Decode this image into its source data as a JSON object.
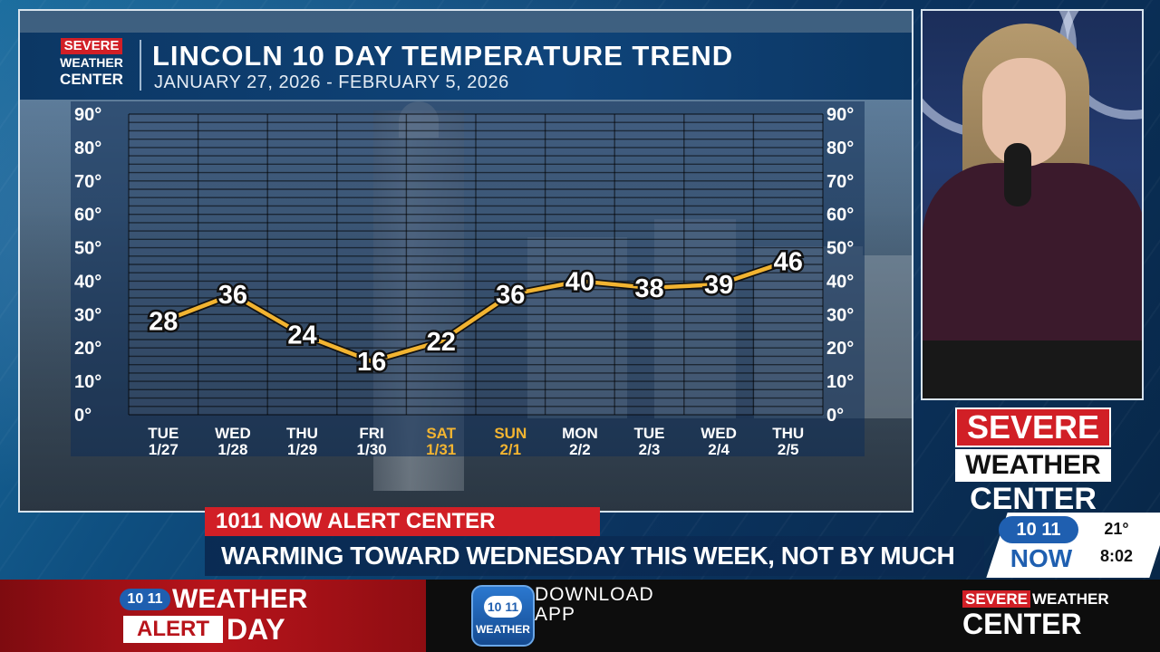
{
  "header": {
    "logo_severe": "SEVERE",
    "logo_weather": "WEATHER",
    "logo_center": "CENTER",
    "title": "LINCOLN 10 DAY TEMPERATURE TREND",
    "subtitle": "JANUARY 27, 2026 - FEBRUARY 5, 2026"
  },
  "chart_data": {
    "type": "line",
    "title": "LINCOLN 10 DAY TEMPERATURE TREND",
    "subtitle": "JANUARY 27, 2026 - FEBRUARY 5, 2026",
    "x_days": [
      "TUE",
      "WED",
      "THU",
      "FRI",
      "SAT",
      "SUN",
      "MON",
      "TUE",
      "WED",
      "THU"
    ],
    "x_dates": [
      "1/27",
      "1/28",
      "1/29",
      "1/30",
      "1/31",
      "2/1",
      "2/2",
      "2/3",
      "2/4",
      "2/5"
    ],
    "weekend_indices": [
      4,
      5
    ],
    "y_ticks": [
      "0°",
      "10°",
      "20°",
      "30°",
      "40°",
      "50°",
      "60°",
      "70°",
      "80°",
      "90°"
    ],
    "ylim": [
      0,
      90
    ],
    "series": [
      {
        "values": [
          28,
          36,
          24,
          16,
          22,
          36,
          40,
          38,
          39,
          46
        ]
      }
    ],
    "data_labels": [
      "28",
      "36",
      "24",
      "16",
      "22",
      "36",
      "40",
      "38",
      "39",
      "46"
    ],
    "grid": true,
    "colors": {
      "line": "#f2b431",
      "weekend_label": "#f2b431",
      "label": "#ffffff"
    }
  },
  "side_logo": {
    "line1": "SEVERE",
    "line2": "WEATHER",
    "line3": "CENTER"
  },
  "lower_third": {
    "alert_label": "1011 NOW ALERT CENTER",
    "ticker": "WARMING TOWARD WEDNESDAY THIS WEEK, NOT BY MUCH"
  },
  "bug": {
    "logo": "10 11",
    "now": "NOW",
    "temp": "21°",
    "time": "8:02"
  },
  "bottom_bar": {
    "wad_logo": "10 11",
    "wad_weather": "WEATHER",
    "wad_alert": "ALERT",
    "wad_day": "DAY",
    "app_logo": "10 11",
    "app_label": "WEATHER",
    "download_text": "DOWNLOAD APP",
    "swc_severe": "SEVERE",
    "swc_weather": "WEATHER",
    "swc_center": "CENTER"
  },
  "colors": {
    "brand_red": "#d11f26",
    "brand_blue": "#1f5fb0",
    "header_blue": "#0f447a"
  }
}
